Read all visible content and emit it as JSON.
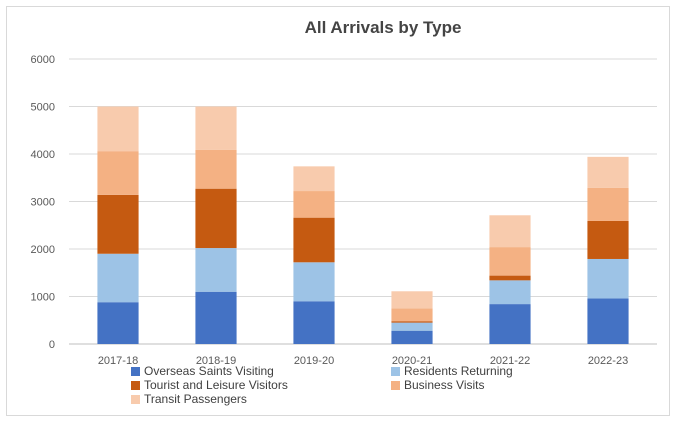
{
  "chart_data": {
    "type": "bar",
    "stacked": true,
    "title": "All Arrivals by Type",
    "xlabel": "",
    "ylabel": "",
    "ylim": [
      0,
      6000
    ],
    "yticks": [
      0,
      1000,
      2000,
      3000,
      4000,
      5000,
      6000
    ],
    "grid": true,
    "legend_position": "bottom",
    "categories": [
      "2017-18",
      "2018-19",
      "2019-20",
      "2020-21",
      "2021-22",
      "2022-23"
    ],
    "series": [
      {
        "name": "Overseas Saints Visiting",
        "color": "#4472c4",
        "values": [
          880,
          1100,
          900,
          280,
          840,
          960
        ]
      },
      {
        "name": "Residents Returning",
        "color": "#9dc3e6",
        "values": [
          1020,
          920,
          820,
          170,
          500,
          830
        ]
      },
      {
        "name": "Tourist and Leisure Visitors",
        "color": "#c55a11",
        "values": [
          1240,
          1250,
          940,
          30,
          100,
          800
        ]
      },
      {
        "name": "Business Visits",
        "color": "#f4b183",
        "values": [
          920,
          820,
          560,
          270,
          600,
          700
        ]
      },
      {
        "name": "Transit Passengers",
        "color": "#f8cbad",
        "values": [
          940,
          910,
          520,
          360,
          670,
          650
        ]
      }
    ]
  }
}
